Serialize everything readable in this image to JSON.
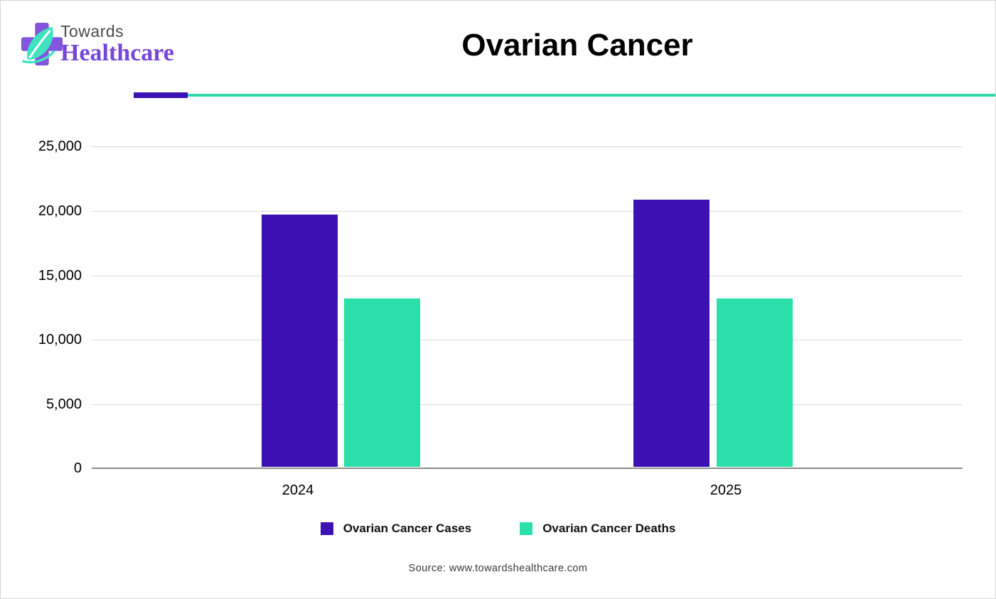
{
  "header": {
    "logo_line1": "Towards",
    "logo_line2": "Healthcare"
  },
  "chart_data": {
    "type": "bar",
    "title": "Ovarian Cancer",
    "categories": [
      "2024",
      "2025"
    ],
    "series": [
      {
        "name": "Ovarian Cancer Cases",
        "color": "#3D12B5",
        "values": [
          19600,
          20800
        ]
      },
      {
        "name": "Ovarian Cancer Deaths",
        "color": "#2BE0A8",
        "values": [
          13100,
          13100
        ]
      }
    ],
    "ylim": [
      0,
      25000
    ],
    "xlabel": "",
    "ylabel": "",
    "yticks": [
      "25,000",
      "20,000",
      "15,000",
      "10,000",
      "5,000",
      "0"
    ],
    "grid": true,
    "legend_position": "bottom"
  },
  "footer": {
    "source": "Source: www.towardshealthcare.com"
  },
  "colors": {
    "purple": "#3D12B5",
    "teal": "#2BE0A8",
    "divider-teal": "#2BD9A9",
    "logo-cross": "#8355DE",
    "logo-leaf": "#3FE3C0",
    "logo-text": "#7646D9",
    "towards-gray": "#4A4A4A",
    "grid": "#DCDCDC",
    "axis": "#8C8C8C",
    "source-gray": "#3A3A3A"
  }
}
